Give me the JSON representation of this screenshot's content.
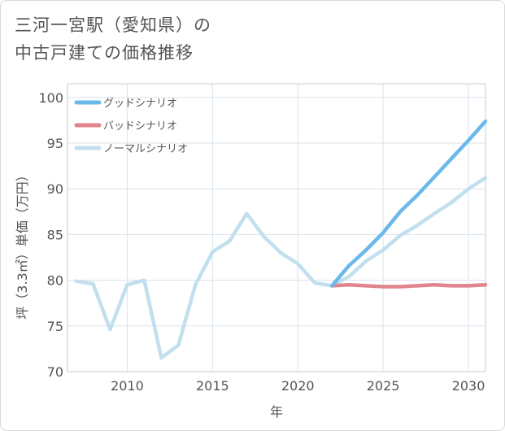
{
  "title_line1": "三河一宮駅（愛知県）の",
  "title_line2": "中古戸建ての価格推移",
  "chart_data": {
    "type": "line",
    "xlabel": "年",
    "ylabel": "坪（3.3㎡）単価（万円）",
    "xlim": [
      2006.5,
      2031
    ],
    "ylim": [
      70,
      101.5
    ],
    "xticks": [
      2010,
      2015,
      2020,
      2025,
      2030
    ],
    "yticks": [
      70,
      75,
      80,
      85,
      90,
      95,
      100
    ],
    "grid": true,
    "legend_position": "top-left",
    "series": [
      {
        "name": "グッドシナリオ",
        "color": "#6ab9ea",
        "x": [
          2022,
          2023,
          2024,
          2025,
          2026,
          2027,
          2028,
          2029,
          2030,
          2031
        ],
        "values": [
          79.4,
          81.6,
          83.3,
          85.2,
          87.5,
          89.3,
          91.3,
          93.3,
          95.3,
          97.4
        ]
      },
      {
        "name": "バッドシナリオ",
        "color": "#e0858c",
        "x": [
          2022,
          2023,
          2024,
          2025,
          2026,
          2027,
          2028,
          2029,
          2030,
          2031
        ],
        "values": [
          79.4,
          79.5,
          79.4,
          79.3,
          79.3,
          79.4,
          79.5,
          79.4,
          79.4,
          79.5
        ]
      },
      {
        "name": "ノーマルシナリオ",
        "color": "#c2dfee",
        "x": [
          2007,
          2008,
          2009,
          2010,
          2011,
          2012,
          2013,
          2014,
          2015,
          2016,
          2017,
          2018,
          2019,
          2020,
          2021,
          2022,
          2023,
          2024,
          2025,
          2026,
          2027,
          2028,
          2029,
          2030,
          2031
        ],
        "values": [
          79.9,
          79.6,
          74.6,
          79.5,
          80.0,
          71.5,
          72.9,
          79.5,
          83.1,
          84.3,
          87.3,
          84.8,
          83.0,
          81.8,
          79.7,
          79.4,
          80.4,
          82.1,
          83.3,
          84.9,
          86.0,
          87.3,
          88.5,
          90.0,
          91.2
        ]
      }
    ]
  }
}
